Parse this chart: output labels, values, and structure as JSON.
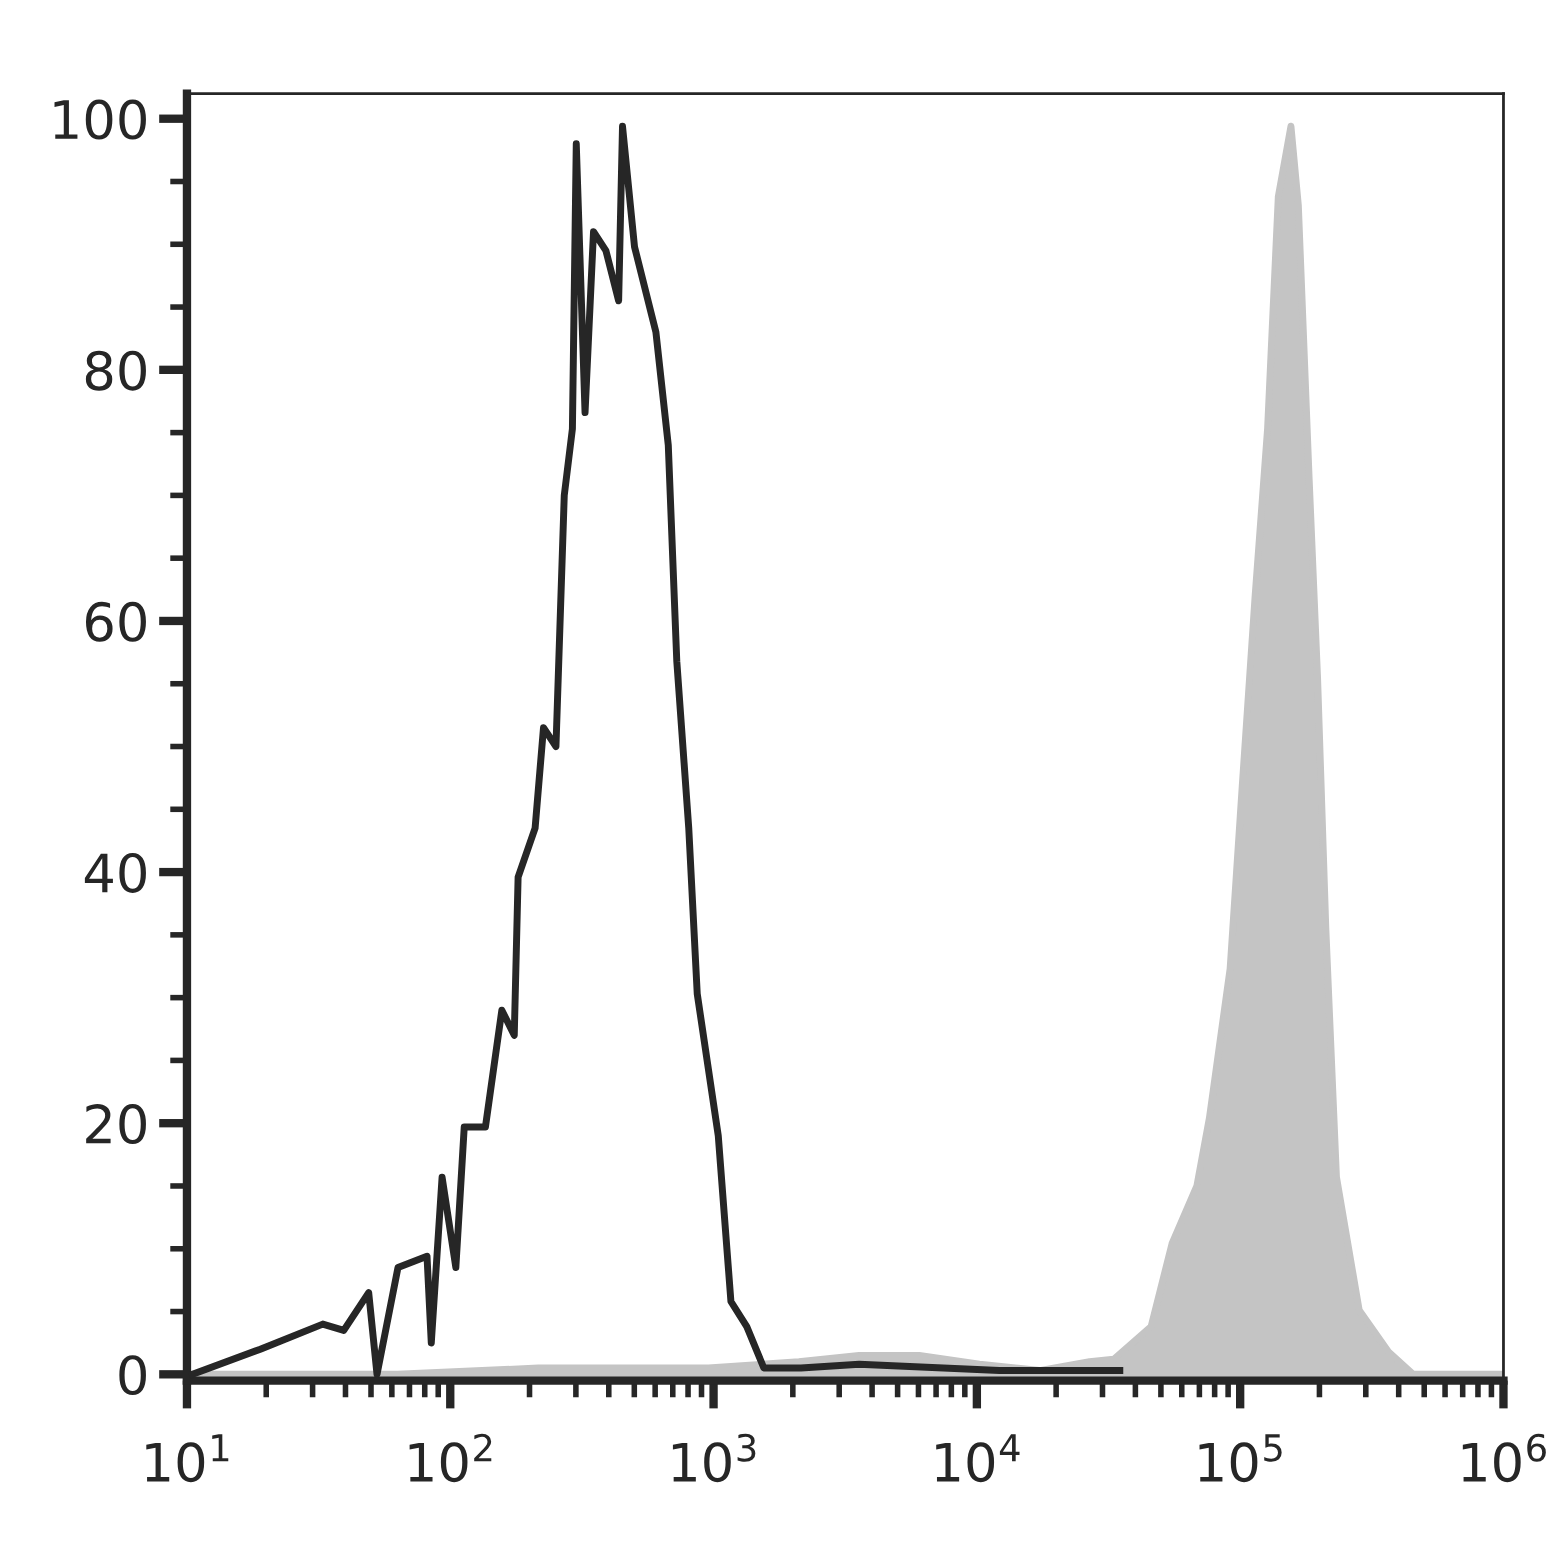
{
  "chart_data": {
    "type": "line",
    "series": [
      {
        "type": "area",
        "color": "#c4c4c4",
        "x": [
          10,
          63,
          216,
          957,
          2110,
          3570,
          6040,
          10230,
          17300,
          26800,
          33100,
          45900,
          55100,
          68500,
          76400,
          91600,
          101800,
          114000,
          127100,
          139600,
          155900,
          166300,
          182800,
          196800,
          211400,
          232100,
          283200,
          365600,
          454000,
          1000000
        ],
        "values": [
          0,
          0,
          0.5,
          0.5,
          1,
          1.5,
          1.5,
          0.8,
          0.3,
          1,
          1.2,
          3.8,
          10.4,
          15,
          20.4,
          32.3,
          46.8,
          62,
          75.3,
          93.8,
          99.4,
          93.1,
          71.3,
          55.4,
          35.6,
          15.7,
          5.1,
          1.8,
          0,
          0
        ]
      },
      {
        "type": "line",
        "color": "#262626",
        "x": [
          10.5,
          19,
          32.8,
          39.4,
          49,
          52.7,
          63.3,
          81.6,
          84.7,
          93.1,
          105,
          113,
          136,
          157,
          175,
          181,
          210,
          226,
          252,
          271,
          291,
          301,
          325,
          350,
          390,
          436,
          451,
          501,
          604,
          673,
          725,
          805,
          867,
          1042,
          1164,
          1337,
          1552,
          2148,
          3572,
          12190,
          34900
        ],
        "values": [
          0,
          2,
          4,
          3.5,
          6.5,
          0,
          8.5,
          9.4,
          2.5,
          15.7,
          8.5,
          19.7,
          19.7,
          29,
          27,
          39.6,
          43.5,
          51.5,
          50,
          70,
          75.3,
          98,
          76.6,
          91,
          89.5,
          85.5,
          99.4,
          89.8,
          83,
          74,
          56.8,
          43.5,
          30.3,
          19,
          5.8,
          3.8,
          0.5,
          0.5,
          0.8,
          0.3,
          0.3
        ]
      }
    ],
    "log": "x",
    "xlim": [
      10,
      1000000
    ],
    "xticks": [
      {
        "value": 10,
        "label": "10$^{1}$"
      },
      {
        "value": 100,
        "label": "10$^{2}$"
      },
      {
        "value": 1000,
        "label": "10$^{3}$"
      },
      {
        "value": 10000,
        "label": "10$^{4}$"
      },
      {
        "value": 100000,
        "label": "10$^{5}$"
      },
      {
        "value": 1000000,
        "label": "10$^{6}$"
      }
    ],
    "ylim": [
      -0.5,
      102
    ],
    "yticks": [
      0,
      20,
      40,
      60,
      80,
      100
    ],
    "grid": false,
    "legend": false
  }
}
